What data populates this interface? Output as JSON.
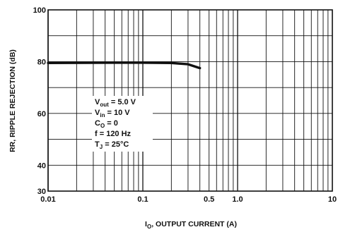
{
  "chart_data": {
    "type": "line",
    "title": "",
    "xlabel": {
      "main": "I",
      "sub": "O",
      "rest": ", OUTPUT CURRENT (A)"
    },
    "ylabel": "RR, RIPPLE REJECTION (dB)",
    "x_scale": "log",
    "xlim": [
      0.01,
      10
    ],
    "ylim": [
      30,
      100
    ],
    "grid": true,
    "x_ticks": [
      {
        "value": 0.01,
        "label": "0.01"
      },
      {
        "value": 0.1,
        "label": "0.1"
      },
      {
        "value": 0.5,
        "label": "0.5"
      },
      {
        "value": 1,
        "label": "1.0"
      },
      {
        "value": 10,
        "label": "10"
      }
    ],
    "y_ticks": [
      {
        "value": 30,
        "label": "30"
      },
      {
        "value": 40,
        "label": "40"
      },
      {
        "value": 60,
        "label": "60"
      },
      {
        "value": 80,
        "label": "80"
      },
      {
        "value": 100,
        "label": "100"
      }
    ],
    "y_gridlines": [
      30,
      40,
      50,
      60,
      70,
      80,
      90,
      100
    ],
    "series": [
      {
        "color": "#111111",
        "points": [
          {
            "x": 0.01,
            "y": 79.5
          },
          {
            "x": 0.05,
            "y": 79.6
          },
          {
            "x": 0.1,
            "y": 79.6
          },
          {
            "x": 0.2,
            "y": 79.5
          },
          {
            "x": 0.3,
            "y": 79.0
          },
          {
            "x": 0.4,
            "y": 77.5
          }
        ]
      }
    ],
    "conditions": [
      {
        "main": "V",
        "sub": "out",
        "rest": " = 5.0 V"
      },
      {
        "main": "V",
        "sub": "in",
        "rest": " = 10 V"
      },
      {
        "main": "C",
        "sub": "O",
        "rest": " = 0"
      },
      {
        "main": "f = 120 Hz",
        "sub": "",
        "rest": ""
      },
      {
        "main": "T",
        "sub": "J",
        "rest": " = 25°C"
      }
    ]
  }
}
